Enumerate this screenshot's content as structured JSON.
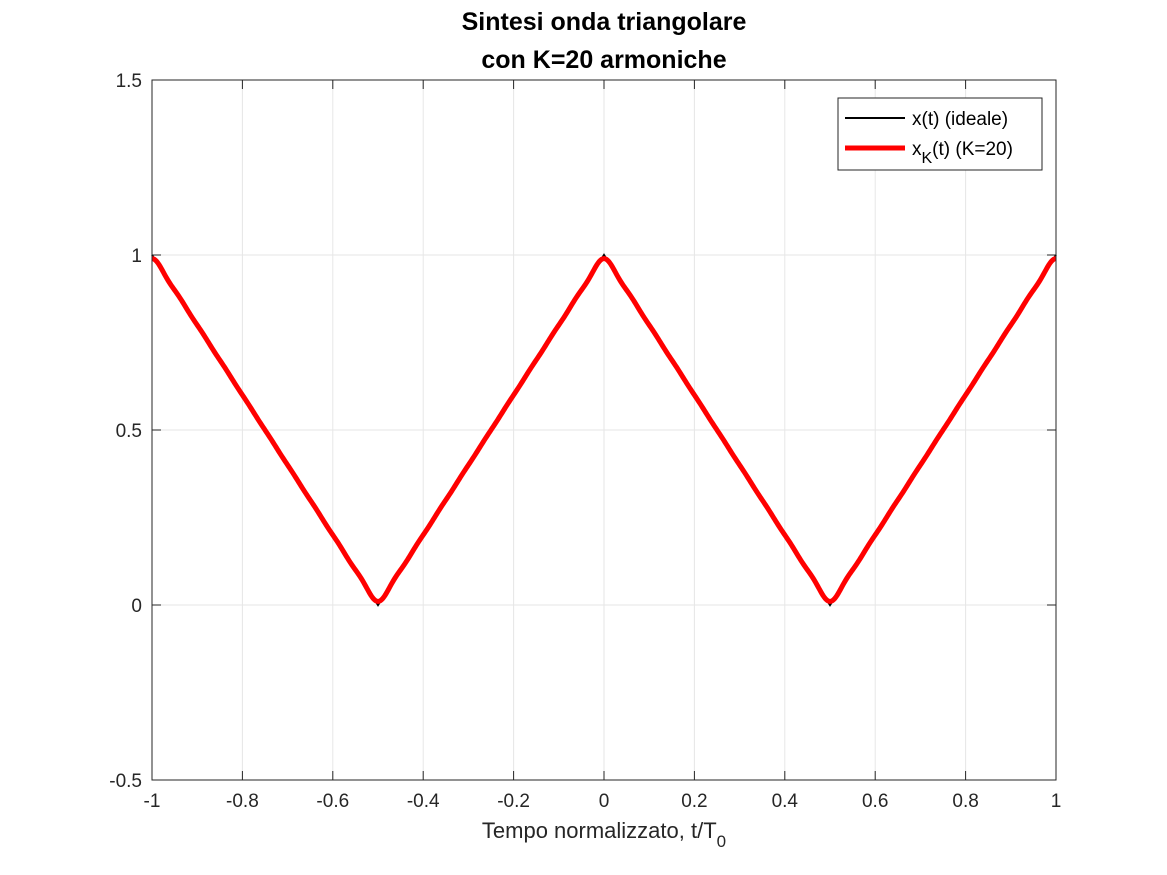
{
  "chart_data": {
    "type": "line",
    "title_line1": "Sintesi onda triangolare",
    "title_line2": "con K=20 armoniche",
    "xlabel_main": "Tempo normalizzato, t/T",
    "xlabel_sub": "0",
    "ylabel": "",
    "xlim": [
      -1,
      1
    ],
    "ylim": [
      -0.5,
      1.5
    ],
    "xticks": [
      -1,
      -0.8,
      -0.6,
      -0.4,
      -0.2,
      0,
      0.2,
      0.4,
      0.6,
      0.8,
      1
    ],
    "xtick_labels": [
      "-1",
      "-0.8",
      "-0.6",
      "-0.4",
      "-0.2",
      "0",
      "0.2",
      "0.4",
      "0.6",
      "0.8",
      "1"
    ],
    "yticks": [
      -0.5,
      0,
      0.5,
      1,
      1.5
    ],
    "ytick_labels": [
      "-0.5",
      "0",
      "0.5",
      "1",
      "1.5"
    ],
    "grid": true,
    "legend_position": "top-right",
    "harmonics": 20,
    "series": [
      {
        "name": "x(t) (ideale)",
        "color": "#000000",
        "kind": "ideal",
        "x": [
          -1,
          -0.5,
          0,
          0.5,
          1
        ],
        "y": [
          1,
          0,
          1,
          0,
          1
        ]
      },
      {
        "name": "x_K(t) (K=20)",
        "color": "#ff0000",
        "kind": "fourier"
      }
    ],
    "legend": {
      "entry1": "x(t) (ideale)",
      "entry2_base": "x",
      "entry2_sub": "K",
      "entry2_rest": "(t) (K=20)"
    }
  }
}
